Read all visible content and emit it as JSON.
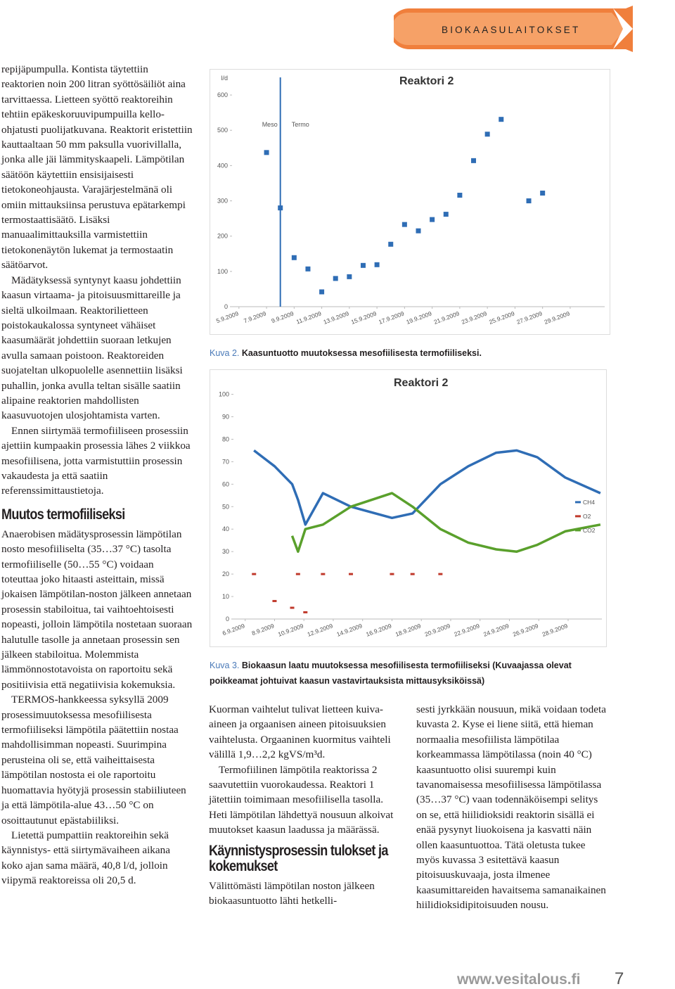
{
  "header": {
    "banner": "BIOKAASULAITOKSET"
  },
  "article": {
    "left_paragraphs": [
      "repijäpumpulla. Kontista täytettiin reaktorien noin 200 litran syöttösäiliöt aina tarvittaessa. Lietteen syöttö reaktoreihin tehtiin epäkeskoruuvipumpuilla kello-ohjatusti puolijatkuvana. Reaktorit eristettiin kauttaaltaan 50 mm paksulla vuorivillalla, jonka alle jäi lämmityskaapeli. Lämpötilan säätöön käytettiin ensisijaisesti tietokoneohjausta. Varajärjestelmänä oli omiin mittauksiinsa perustuva epätarkempi termostaattisäätö. Lisäksi manuaalimittauksilla varmistettiin tietokonenäytön lukemat ja termostaatin säätöarvot.",
      "Mädätyksessä syntynyt kaasu johdettiin kaasun virtaama- ja pitoisuusmittareille ja sieltä ulkoilmaan. Reaktorilietteen poistokaukalossa syntyneet vähäiset kaasumäärät johdettiin suoraan letkujen avulla samaan poistoon. Reaktoreiden suojateltan ulkopuolelle asennettiin lisäksi puhallin, jonka avulla teltan sisälle saatiin alipaine reaktorien mahdollisten kaasuvuotojen ulosjohtamista varten.",
      "Ennen siirtymää termofiiliseen prosessiin ajettiin kumpaakin prosessia lähes 2 viikkoa mesofiilisena, jotta varmistuttiin prosessin vakaudesta ja että saatiin referenssimittaustietoja."
    ],
    "heading_1": "Muutos termofiiliseksi",
    "left_paragraphs_2": [
      "Anaerobisen mädätysprosessin lämpötilan nosto mesofiiliselta (35…37 °C) tasolta termofiiliselle (50…55 °C) voidaan toteuttaa joko hitaasti asteittain, missä jokaisen lämpötilan-noston jälkeen annetaan prosessin stabiloitua, tai vaihtoehtoisesti nopeasti, jolloin lämpötila nostetaan suoraan halutulle tasolle ja annetaan prosessin sen jälkeen stabiloitua. Molemmista lämmönnostotavoista on raportoitu sekä positiivisia että negatiivisia kokemuksia.",
      "TERMOS-hankkeessa syksyllä 2009 prosessimuutoksessa mesofiilisesta termofiiliseksi lämpötila päätettiin nostaa mahdollisimman nopeasti. Suurimpina perusteina oli se, että vaiheittaisesta lämpötilan nostosta ei ole raportoitu huomattavia hyötyjä prosessin stabiiliuteen ja että lämpötila-alue 43…50 °C on osoittautunut epästabiiliksi.",
      "Lietettä pumpattiin reaktoreihin sekä käynnistys- että siirtymävaiheen aikana koko ajan sama määrä, 40,8 l/d, jolloin viipymä reaktoreissa oli 20,5 d."
    ],
    "middle_paragraphs": [
      "Kuorman vaihtelut tulivat lietteen kuiva-aineen ja orgaanisen aineen pitoisuuksien vaihtelusta. Orgaaninen kuormitus vaihteli välillä 1,9…2,2 kgVS/m³d.",
      "Termofiilinen lämpötila reaktorissa 2 saavutettiin vuorokaudessa. Reaktori 1 jätettiin toimimaan mesofiilisella tasolla. Heti lämpötilan lähdettyä nousuun alkoivat muutokset kaasun laadussa ja määrässä."
    ],
    "heading_2": "Käynnistysprosessin tulokset ja kokemukset",
    "middle_paragraphs_2": [
      "Välittömästi lämpötilan noston jälkeen biokaasuntuotto lähti hetkelli-"
    ],
    "right_paragraphs": [
      "sesti jyrkkään nousuun, mikä voidaan todeta kuvasta 2. Kyse ei liene siitä, että hieman normaalia mesofiilista lämpötilaa korkeammassa lämpötilassa (noin 40 °C) kaasuntuotto olisi suurempi kuin tavanomaisessa mesofiilisessa lämpötilassa (35…37 °C) vaan todennäköisempi selitys on se, että hiilidioksidi reaktorin sisällä ei enää pysynyt liuokoisena ja kasvatti näin ollen kaasuntuottoa. Tätä oletusta tukee myös kuvassa 3 esitettävä kaasun pitoisuuskuvaaja, josta ilmenee kaasumittareiden havaitsema samanaikainen hiilidioksidipitoisuuden nousu."
    ]
  },
  "chart_data": [
    {
      "type": "scatter",
      "title": "Reaktori 2",
      "ylabel": "l/d",
      "annotations": [
        "Meso",
        "Termo"
      ],
      "divider_x": 8,
      "color": "#2f6db5",
      "x": [
        7,
        8,
        9,
        10,
        11,
        12,
        13,
        14,
        15,
        16,
        17,
        18,
        19,
        20,
        21,
        22,
        23,
        24,
        26,
        27
      ],
      "values": [
        437,
        280,
        139,
        107,
        42,
        80,
        85,
        117,
        119,
        177,
        233,
        215,
        247,
        262,
        316,
        414,
        489,
        531,
        300,
        322
      ],
      "xlim": [
        4.5,
        31.5
      ],
      "ylim": [
        0,
        650
      ],
      "xticks": [
        {
          "value": 5,
          "label": "5.9.2009"
        },
        {
          "value": 7,
          "label": "7.9.2009"
        },
        {
          "value": 9,
          "label": "9.9.2009"
        },
        {
          "value": 11,
          "label": "11.9.2009"
        },
        {
          "value": 13,
          "label": "13.9.2009"
        },
        {
          "value": 15,
          "label": "15.9.2009"
        },
        {
          "value": 17,
          "label": "17.9.2009"
        },
        {
          "value": 19,
          "label": "19.9.2009"
        },
        {
          "value": 21,
          "label": "21.9.2009"
        },
        {
          "value": 23,
          "label": "23.9.2009"
        },
        {
          "value": 25,
          "label": "25.9.2009"
        },
        {
          "value": 27,
          "label": "27.9.2009"
        },
        {
          "value": 29,
          "label": "29.9.2009"
        }
      ],
      "yticks": [
        0,
        100,
        200,
        300,
        400,
        500,
        600
      ],
      "caption_label": "Kuva 2.",
      "caption": "Kaasuntuotto muutoksessa mesofiilisesta termofiiliseksi."
    },
    {
      "type": "line",
      "title": "Reaktori 2",
      "legend": "right",
      "x": [
        6.6,
        8,
        9.2,
        9.6,
        10.1,
        11.3,
        13.2,
        16,
        17.4,
        19.3,
        21.2,
        23.1,
        24.5,
        25.9,
        27.8,
        30.2
      ],
      "series": [
        {
          "name": "CH4",
          "color": "#2f6db5",
          "values": [
            75,
            68,
            60,
            53,
            42,
            56,
            50,
            45,
            47,
            60,
            68,
            74,
            75,
            72,
            63,
            56
          ]
        },
        {
          "name": "O2",
          "color": "#c0392b",
          "marker": "dash",
          "values": [
            20,
            8,
            5,
            20,
            3,
            20,
            20,
            20,
            20,
            20,
            null,
            null,
            null,
            null,
            null,
            null
          ]
        },
        {
          "name": "CO2",
          "color": "#5aa02c",
          "values": [
            null,
            null,
            37,
            30,
            40,
            42,
            50,
            56,
            50,
            40,
            34,
            31,
            30,
            33,
            39,
            42
          ]
        }
      ],
      "xlim": [
        5.2,
        30.3
      ],
      "ylim": [
        0,
        108
      ],
      "xticks": [
        {
          "value": 6,
          "label": "6.9.2009"
        },
        {
          "value": 8,
          "label": "8.9.2009"
        },
        {
          "value": 10,
          "label": "10.9.2009"
        },
        {
          "value": 12,
          "label": "12.9.2009"
        },
        {
          "value": 14,
          "label": "14.9.2009"
        },
        {
          "value": 16,
          "label": "16.9.2009"
        },
        {
          "value": 18,
          "label": "18.9.2009"
        },
        {
          "value": 20,
          "label": "20.9.2009"
        },
        {
          "value": 22,
          "label": "22.9.2009"
        },
        {
          "value": 24,
          "label": "24.9.2009"
        },
        {
          "value": 26,
          "label": "26.9.2009"
        },
        {
          "value": 28,
          "label": "28.9.2009"
        }
      ],
      "yticks": [
        0,
        10,
        20,
        30,
        40,
        50,
        60,
        70,
        80,
        90,
        100
      ],
      "caption_label": "Kuva 3.",
      "caption": "Biokaasun laatu muutoksessa mesofiilisesta termofiiliseksi (Kuvaajassa olevat poikkeamat johtuivat kaasun vastavirtauksista mittausyksiköissä)"
    }
  ],
  "footer": {
    "site": "www.vesitalous.fi",
    "page": "7"
  }
}
